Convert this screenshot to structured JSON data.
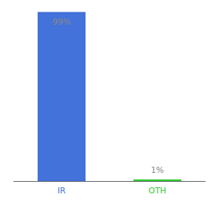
{
  "chart_data": {
    "type": "bar",
    "categories": [
      "IR",
      "OTH"
    ],
    "values": [
      99,
      1
    ],
    "colors": [
      "#4472db",
      "#33cc33"
    ],
    "value_labels": [
      "99%",
      "1%"
    ],
    "data_labels": true,
    "ylim": [
      0,
      100
    ],
    "tick_labels": "x",
    "grid": false
  }
}
